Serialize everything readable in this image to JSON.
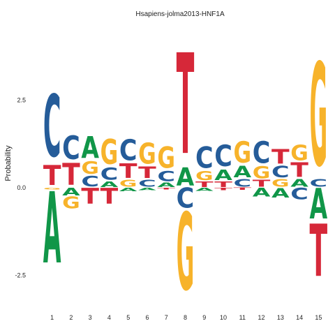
{
  "chart_data": {
    "type": "sequence-logo",
    "title": "Hsapiens-jolma2013-HNF1A",
    "xlabel": "",
    "ylabel": "Probability",
    "ylim": [
      -2.85,
      4.6
    ],
    "yticks": [
      -2.5,
      0.0,
      2.5
    ],
    "ytick_labels": [
      "-2.5",
      "0.0",
      "2.5"
    ],
    "positions": [
      "1",
      "2",
      "3",
      "4",
      "5",
      "6",
      "7",
      "8",
      "9",
      "10",
      "11",
      "12",
      "13",
      "14",
      "15"
    ],
    "grid": false,
    "colors": {
      "A": "#109648",
      "C": "#255C99",
      "G": "#F7B32B",
      "T": "#D62839"
    },
    "columns": [
      {
        "pos": "1",
        "above": [
          [
            "C",
            2.05
          ],
          [
            "T",
            0.65
          ]
        ],
        "below": [
          [
            "G",
            0.06
          ],
          [
            "A",
            2.35
          ]
        ]
      },
      {
        "pos": "2",
        "above": [
          [
            "C",
            0.78
          ],
          [
            "T",
            0.72
          ]
        ],
        "below": [
          [
            "A",
            0.25
          ],
          [
            "G",
            0.38
          ]
        ]
      },
      {
        "pos": "3",
        "above": [
          [
            "A",
            0.72
          ],
          [
            "G",
            0.42
          ],
          [
            "C",
            0.35
          ]
        ],
        "below": [
          [
            "T",
            0.52
          ]
        ]
      },
      {
        "pos": "4",
        "above": [
          [
            "G",
            0.82
          ],
          [
            "C",
            0.4
          ],
          [
            "A",
            0.18
          ]
        ],
        "below": [
          [
            "T",
            0.52
          ]
        ]
      },
      {
        "pos": "5",
        "above": [
          [
            "C",
            0.68
          ],
          [
            "T",
            0.48
          ],
          [
            "G",
            0.22
          ]
        ],
        "below": [
          [
            "A",
            0.12
          ]
        ]
      },
      {
        "pos": "6",
        "above": [
          [
            "G",
            0.68
          ],
          [
            "T",
            0.38
          ],
          [
            "C",
            0.23
          ]
        ],
        "below": [
          [
            "A",
            0.08
          ]
        ]
      },
      {
        "pos": "7",
        "above": [
          [
            "G",
            0.7
          ],
          [
            "C",
            0.33
          ],
          [
            "A",
            0.15
          ]
        ],
        "below": [
          [
            "T",
            0.06
          ]
        ]
      },
      {
        "pos": "8",
        "above": [
          [
            "T",
            3.32
          ],
          [
            "A",
            0.6
          ]
        ],
        "below": [
          [
            "C",
            0.65
          ],
          [
            "G",
            2.55
          ]
        ]
      },
      {
        "pos": "9",
        "above": [
          [
            "C",
            0.7
          ],
          [
            "G",
            0.3
          ],
          [
            "T",
            0.18
          ]
        ],
        "below": [
          [
            "A",
            0.1
          ]
        ]
      },
      {
        "pos": "10",
        "above": [
          [
            "C",
            0.7
          ],
          [
            "A",
            0.35
          ],
          [
            "T",
            0.18
          ]
        ],
        "below": [
          [
            "T",
            0.08
          ]
        ]
      },
      {
        "pos": "11",
        "above": [
          [
            "G",
            0.7
          ],
          [
            "A",
            0.38
          ],
          [
            "C",
            0.25
          ]
        ],
        "below": [
          [
            "T",
            0.07
          ]
        ]
      },
      {
        "pos": "12",
        "above": [
          [
            "C",
            0.72
          ],
          [
            "G",
            0.4
          ],
          [
            "T",
            0.22
          ]
        ],
        "below": [
          [
            "A",
            0.28
          ]
        ]
      },
      {
        "pos": "13",
        "above": [
          [
            "T",
            0.48
          ],
          [
            "C",
            0.38
          ],
          [
            "G",
            0.25
          ]
        ],
        "below": [
          [
            "A",
            0.32
          ]
        ]
      },
      {
        "pos": "14",
        "above": [
          [
            "G",
            0.5
          ],
          [
            "T",
            0.48
          ],
          [
            "A",
            0.25
          ]
        ],
        "below": [
          [
            "C",
            0.38
          ]
        ]
      },
      {
        "pos": "15",
        "above": [
          [
            "G",
            3.4
          ],
          [
            "C",
            0.25
          ]
        ],
        "below": [
          [
            "A",
            1.0
          ],
          [
            "T",
            1.72
          ]
        ]
      }
    ]
  }
}
